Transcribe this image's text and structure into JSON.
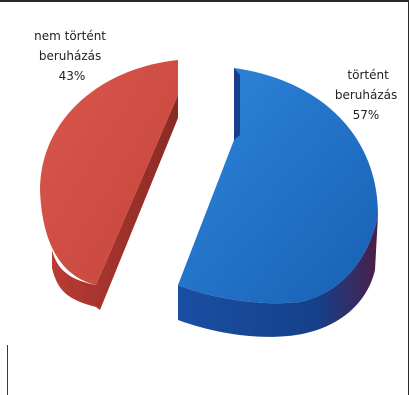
{
  "chart_data": {
    "type": "pie",
    "title": "",
    "style": "3d-exploded",
    "legend": "none",
    "slices": [
      {
        "label": "történt beruházás",
        "label_lines": [
          "történt",
          "beruházás"
        ],
        "value": 57,
        "display_value": "57%",
        "color": "#1f6fc2"
      },
      {
        "label": "nem történt beruházás",
        "label_lines": [
          "nem történt",
          "beruházás"
        ],
        "value": 43,
        "display_value": "43%",
        "color": "#cf4b40"
      }
    ]
  }
}
